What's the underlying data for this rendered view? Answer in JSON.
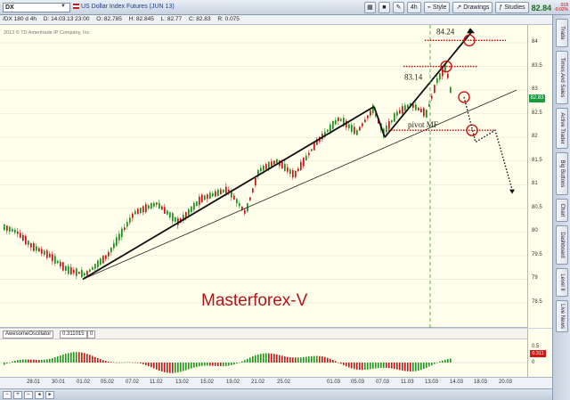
{
  "toolbar": {
    "symbol": "DX",
    "title": "US Dollar Index Futures (JUN 13)",
    "interval": "4h",
    "style_label": "Style",
    "drawings_label": "Drawings",
    "studies_label": "Studies",
    "last_price": "82.84",
    "change": "018",
    "change_pct": "-0.02%"
  },
  "infobar": {
    "symbol_interval": "/DX 180 d 4h",
    "date": "D: 14.03.13 23:00",
    "open": "O: 82.785",
    "high": "H: 82.845",
    "low": "L: 82.77",
    "close": "C: 82.83",
    "range": "R: 0.075"
  },
  "copyright": "2013 © TD Ameritrade IP Company, Inc.",
  "watermark": "Masterforex-V",
  "annotations": {
    "level_high": "84.24",
    "level_mid": "83.14",
    "pivot": "pivot MF"
  },
  "price_axis": {
    "labels": [
      "84",
      "83.5",
      "83",
      "82.5",
      "82",
      "81.5",
      "81",
      "80.5",
      "80",
      "79.5",
      "79",
      "78.5"
    ],
    "current": "82.83"
  },
  "oscillator": {
    "name": "AwesomeOscillator",
    "value": "0.311015",
    "zero": "0",
    "axis_labels": [
      "0.5",
      "0"
    ],
    "current_tag": "0.311"
  },
  "time_axis": [
    "28.01",
    "30.01",
    "01.02",
    "05.02",
    "07.02",
    "11.02",
    "13.02",
    "15.02",
    "19.02",
    "21.02",
    "25.02",
    "01.03",
    "05.03",
    "07.03",
    "11.03",
    "13.03",
    "14.03",
    "18.03",
    "20.03"
  ],
  "sidebar": [
    "Trade",
    "Times And Sales",
    "Active Trader",
    "Big Buttons",
    "Chart",
    "Dashboard",
    "Level II",
    "Live News"
  ],
  "colors": {
    "up": "#1a8f1a",
    "down": "#c41616",
    "background": "#ffffec",
    "accent": "#b5161b"
  }
}
